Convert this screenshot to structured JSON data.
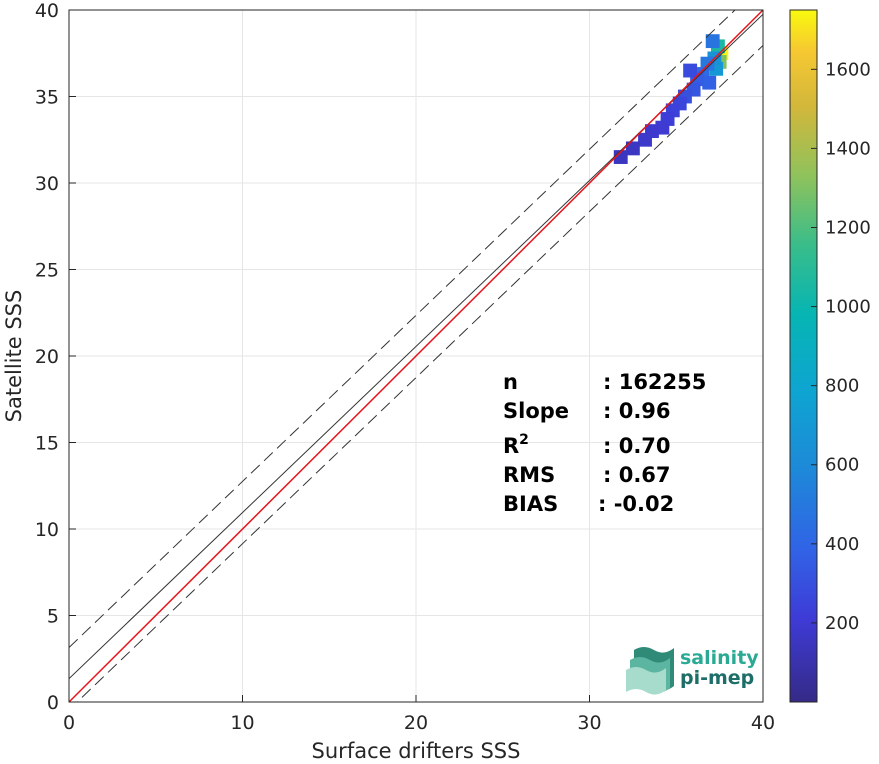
{
  "chart_data": {
    "type": "heatmap",
    "xlabel": "Surface drifters SSS",
    "ylabel": "Satellite SSS",
    "xlim": [
      0,
      40
    ],
    "ylim": [
      0,
      40
    ],
    "xticks": [
      "0",
      "10",
      "20",
      "30",
      "40"
    ],
    "yticks": [
      "0",
      "5",
      "10",
      "15",
      "20",
      "25",
      "30",
      "35",
      "40"
    ],
    "grid": true,
    "colormap": "parula",
    "colorbar": {
      "min": 0,
      "max": 1750,
      "ticks": [
        "200",
        "400",
        "600",
        "800",
        "1000",
        "1200",
        "1400",
        "1600"
      ]
    },
    "stats": [
      {
        "label": "n",
        "value": ": 162255"
      },
      {
        "label": "Slope",
        "value": ": 0.96"
      },
      {
        "label": "R",
        "sup": "2",
        "value": ": 0.70"
      },
      {
        "label": "RMS",
        "value": ": 0.67"
      },
      {
        "label": "BIAS",
        "value": ": -0.02"
      }
    ],
    "lines": {
      "identity": {
        "color": "#e8141c",
        "x": [
          0,
          40
        ],
        "y": [
          0,
          40
        ]
      },
      "fit": {
        "color": "#333333",
        "slope": 0.96,
        "intercept": 1.35
      },
      "fit_band_offset": 1.8
    },
    "density_cells": [
      {
        "x": 37.6,
        "y": 37.5,
        "count": 1750
      },
      {
        "x": 37.5,
        "y": 37.0,
        "count": 1300
      },
      {
        "x": 37.4,
        "y": 37.9,
        "count": 1050
      },
      {
        "x": 37.3,
        "y": 36.6,
        "count": 700
      },
      {
        "x": 37.2,
        "y": 37.2,
        "count": 650
      },
      {
        "x": 36.8,
        "y": 36.9,
        "count": 500
      },
      {
        "x": 37.1,
        "y": 38.2,
        "count": 480
      },
      {
        "x": 36.5,
        "y": 36.3,
        "count": 420
      },
      {
        "x": 36.9,
        "y": 35.8,
        "count": 380
      },
      {
        "x": 36.2,
        "y": 36.0,
        "count": 360
      },
      {
        "x": 36.0,
        "y": 35.4,
        "count": 330
      },
      {
        "x": 35.5,
        "y": 35.0,
        "count": 300
      },
      {
        "x": 35.8,
        "y": 36.5,
        "count": 280
      },
      {
        "x": 35.2,
        "y": 34.6,
        "count": 260
      },
      {
        "x": 34.8,
        "y": 34.2,
        "count": 240
      },
      {
        "x": 34.5,
        "y": 33.7,
        "count": 220
      },
      {
        "x": 34.2,
        "y": 33.2,
        "count": 200
      },
      {
        "x": 33.6,
        "y": 33.0,
        "count": 190
      },
      {
        "x": 33.2,
        "y": 32.5,
        "count": 180
      },
      {
        "x": 32.5,
        "y": 32.0,
        "count": 160
      },
      {
        "x": 31.8,
        "y": 31.5,
        "count": 150
      }
    ]
  },
  "logo": {
    "line1": "salinity",
    "line2": "pi-mep"
  }
}
